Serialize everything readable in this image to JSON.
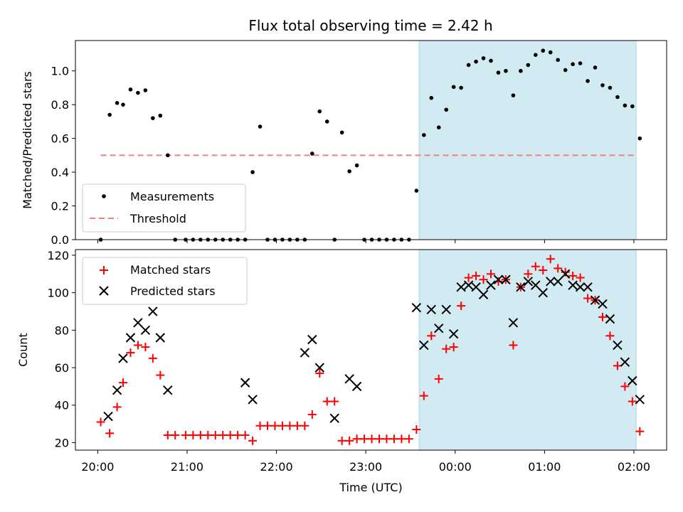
{
  "chart_data": {
    "title": "Flux total observing time = 2.42 h",
    "xlabel": "Time (UTC)",
    "x_ticks": [
      "20:00",
      "21:00",
      "22:00",
      "23:00",
      "00:00",
      "01:00",
      "02:00"
    ],
    "x_tick_values": [
      0,
      60,
      120,
      180,
      240,
      300,
      360
    ],
    "xlim": [
      -15,
      382
    ],
    "highlight_span": [
      215.8,
      361.5
    ],
    "colors": {
      "highlight": "#add8e6",
      "measurements": "#000000",
      "threshold": "#f08080",
      "matched": "#ff0000",
      "predicted": "#000000"
    },
    "top_panel": {
      "type": "scatter",
      "ylabel": "Matched/Predicted stars",
      "ylim": [
        0,
        1.18
      ],
      "y_ticks": [
        "0.0",
        "0.2",
        "0.4",
        "0.6",
        "0.8",
        "1.0"
      ],
      "y_tick_values": [
        0,
        0.2,
        0.4,
        0.6,
        0.8,
        1.0
      ],
      "threshold": {
        "value": 0.5,
        "x_range": [
          2,
          362
        ]
      },
      "legend": {
        "placement": "lower-left",
        "entries": [
          "Measurements",
          "Threshold"
        ]
      },
      "series": [
        {
          "name": "Measurements",
          "x": [
            2,
            8,
            13,
            17,
            22,
            27,
            32,
            37,
            42,
            47,
            52,
            59,
            64,
            69,
            74,
            79,
            84,
            89,
            94,
            99,
            104,
            109,
            114,
            119,
            124,
            129,
            134,
            139,
            144,
            149,
            154,
            159,
            164,
            169,
            174,
            179,
            184,
            189,
            194,
            199,
            204,
            209,
            214,
            219,
            224,
            229,
            234,
            239,
            244,
            249,
            254,
            259,
            264,
            269,
            274,
            279,
            284,
            289,
            294,
            299,
            304,
            309,
            314,
            319,
            324,
            329,
            334,
            339,
            344,
            349,
            354,
            359,
            364
          ],
          "y": [
            0,
            0.74,
            0.81,
            0.8,
            0.89,
            0.87,
            0.885,
            0.72,
            0.735,
            0.5,
            0,
            0,
            0,
            0,
            0,
            0,
            0,
            0,
            0,
            0,
            0.4,
            0.67,
            0,
            0,
            0,
            0,
            0,
            0,
            0.51,
            0.76,
            0.7,
            0,
            0.635,
            0.405,
            0.44,
            0,
            0,
            0,
            0,
            0,
            0,
            0,
            0.29,
            0.62,
            0.84,
            0.665,
            0.77,
            0.905,
            0.9,
            1.035,
            1.055,
            1.075,
            1.06,
            0.99,
            1.0,
            0.855,
            1.0,
            1.035,
            1.095,
            1.12,
            1.11,
            1.065,
            1.005,
            1.04,
            1.045,
            0.94,
            1.02,
            0.915,
            0.9,
            0.845,
            0.795,
            0.79,
            0.6
          ]
        }
      ]
    },
    "bottom_panel": {
      "type": "scatter",
      "ylabel": "Count",
      "ylim": [
        16,
        123
      ],
      "y_ticks": [
        "20",
        "40",
        "60",
        "80",
        "100",
        "120"
      ],
      "y_tick_values": [
        20,
        40,
        60,
        80,
        100,
        120
      ],
      "legend": {
        "placement": "top-left",
        "entries": [
          "Matched stars",
          "Predicted stars"
        ]
      },
      "series": [
        {
          "name": "Matched stars",
          "x": [
            2,
            8,
            13,
            17,
            22,
            27,
            32,
            37,
            42,
            47,
            52,
            59,
            64,
            69,
            74,
            79,
            84,
            89,
            94,
            99,
            104,
            109,
            114,
            119,
            124,
            129,
            134,
            139,
            144,
            149,
            154,
            159,
            164,
            169,
            174,
            179,
            184,
            189,
            194,
            199,
            204,
            209,
            214,
            219,
            224,
            229,
            234,
            239,
            244,
            249,
            254,
            259,
            264,
            269,
            274,
            279,
            284,
            289,
            294,
            299,
            304,
            309,
            314,
            319,
            324,
            329,
            334,
            339,
            344,
            349,
            354,
            359,
            364
          ],
          "y": [
            31,
            25,
            39,
            52,
            68,
            72,
            71,
            65,
            56,
            24,
            24,
            24,
            24,
            24,
            24,
            24,
            24,
            24,
            24,
            24,
            21,
            29,
            29,
            29,
            29,
            29,
            29,
            29,
            35,
            57,
            42,
            42,
            21,
            21,
            22,
            22,
            22,
            22,
            22,
            22,
            22,
            22,
            27,
            45,
            77,
            54,
            70,
            71,
            93,
            108,
            109,
            107,
            110,
            106,
            107,
            72,
            103,
            110,
            114,
            112,
            118,
            113,
            111,
            109,
            108,
            97,
            96,
            87,
            77,
            61,
            50,
            42,
            26
          ]
        },
        {
          "name": "Predicted stars",
          "x": [
            7,
            13,
            17,
            22,
            27,
            32,
            37,
            42,
            47,
            99,
            104,
            139,
            144,
            149,
            159,
            169,
            174,
            214,
            219,
            224,
            229,
            234,
            239,
            244,
            249,
            254,
            259,
            264,
            269,
            274,
            279,
            284,
            289,
            294,
            299,
            304,
            309,
            314,
            319,
            324,
            329,
            334,
            339,
            344,
            349,
            354,
            359,
            364
          ],
          "y": [
            34,
            48,
            65,
            76,
            84,
            80,
            90,
            76,
            48,
            52,
            43,
            68,
            75,
            60,
            33,
            54,
            50,
            92,
            72,
            91,
            81,
            91,
            78,
            103,
            104,
            103,
            99,
            104,
            107,
            107,
            84,
            103,
            106,
            104,
            100,
            106,
            106,
            110,
            104,
            103,
            103,
            96,
            94,
            86,
            72,
            63,
            53,
            43
          ]
        }
      ]
    }
  }
}
